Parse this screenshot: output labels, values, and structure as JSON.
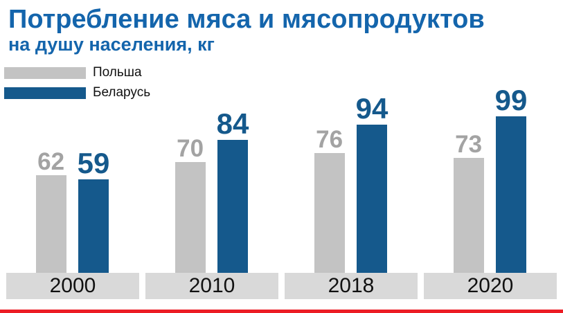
{
  "header": {
    "title": "Потребление мяса и мясопродуктов",
    "subtitle": "на душу населения, кг"
  },
  "legend": [
    {
      "label": "Польша",
      "color": "#c3c3c3"
    },
    {
      "label": "Беларусь",
      "color": "#15598c"
    }
  ],
  "chart_data": {
    "type": "bar",
    "title": "Потребление мяса и мясопродуктов",
    "subtitle": "на душу населения, кг",
    "categories": [
      "2000",
      "2010",
      "2018",
      "2020"
    ],
    "series": [
      {
        "name": "Польша",
        "color": "#c3c3c3",
        "label_color": "#a3a3a3",
        "values": [
          62,
          70,
          76,
          73
        ]
      },
      {
        "name": "Беларусь",
        "color": "#15598c",
        "label_color": "#15598c",
        "values": [
          59,
          84,
          94,
          99
        ]
      }
    ],
    "ylim": [
      0,
      105
    ],
    "grid": false,
    "legend_position": "top-left",
    "value_labels": "above-bars"
  },
  "colors": {
    "title_blue": "#1465ac",
    "bar_gray": "#c3c3c3",
    "bar_blue": "#15598c",
    "gray_label": "#a3a3a3",
    "year_band_bg": "#d9d9d9",
    "accent_red": "#ec1c24"
  }
}
